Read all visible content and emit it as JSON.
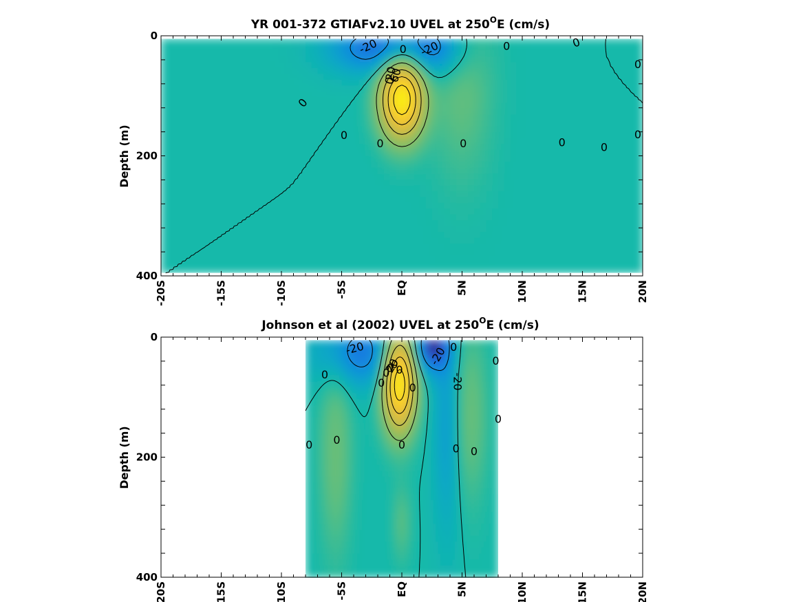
{
  "chart_data": [
    {
      "type": "heatmap",
      "title_main": "YR 001-372 GTIAFv2.10 UVEL at 250",
      "title_sup": "O",
      "title_tail": "E (cm/s)",
      "ylabel": "Depth (m)",
      "xlabel": "",
      "xlim": [
        -20,
        20
      ],
      "ylim": [
        400,
        0
      ],
      "x_ticks": [
        -20,
        -15,
        -10,
        -5,
        0,
        5,
        10,
        15,
        20
      ],
      "x_tick_labels": [
        "-20S",
        "-15S",
        "-10S",
        "-5S",
        "EQ",
        "5N",
        "10N",
        "15N",
        "20N"
      ],
      "y_ticks": [
        0,
        200,
        400
      ],
      "y_tick_labels": [
        "0",
        "200",
        "400"
      ],
      "data_extent": {
        "lat": [
          -20,
          20
        ],
        "depth": [
          5,
          395
        ]
      },
      "features": [
        {
          "kind": "core",
          "lat": 0,
          "depth": 105,
          "lat_sigma": 1.2,
          "depth_sigma": 45,
          "value": 95
        },
        {
          "kind": "westward",
          "lat": -2,
          "depth": 20,
          "lat_sigma": 2.8,
          "depth_sigma": 30,
          "value": -28
        },
        {
          "kind": "westward",
          "lat": 3,
          "depth": 20,
          "lat_sigma": 1.8,
          "depth_sigma": 35,
          "value": -22
        },
        {
          "kind": "eastward",
          "lat": 5,
          "depth": 80,
          "lat_sigma": 1.8,
          "depth_sigma": 110,
          "value": 12
        }
      ],
      "contour_labels": [
        {
          "text": "-20",
          "lat": -2.8,
          "depth": 18,
          "rot": -25
        },
        {
          "text": "0",
          "lat": 0.1,
          "depth": 23,
          "rot": 0
        },
        {
          "text": "-20",
          "lat": 2.3,
          "depth": 22,
          "rot": -25
        },
        {
          "text": "0",
          "lat": 8.7,
          "depth": 18,
          "rot": 0
        },
        {
          "text": "0",
          "lat": 14.5,
          "depth": 12,
          "rot": -20
        },
        {
          "text": "0",
          "lat": 19.6,
          "depth": 48,
          "rot": 0
        },
        {
          "text": "0",
          "lat": -8.2,
          "depth": 112,
          "rot": -50
        },
        {
          "text": "0",
          "lat": -1.0,
          "depth": 75,
          "rot": -75
        },
        {
          "text": "20",
          "lat": -0.9,
          "depth": 63,
          "rot": -80
        },
        {
          "text": "60",
          "lat": -0.5,
          "depth": 66,
          "rot": -75
        },
        {
          "text": "0",
          "lat": -4.8,
          "depth": 166,
          "rot": 0
        },
        {
          "text": "0",
          "lat": -1.8,
          "depth": 180,
          "rot": 0
        },
        {
          "text": "0",
          "lat": 5.1,
          "depth": 180,
          "rot": 0
        },
        {
          "text": "0",
          "lat": 13.3,
          "depth": 178,
          "rot": 0
        },
        {
          "text": "0",
          "lat": 16.8,
          "depth": 186,
          "rot": 0
        },
        {
          "text": "0",
          "lat": 19.6,
          "depth": 165,
          "rot": 0
        }
      ]
    },
    {
      "type": "heatmap",
      "title_main": "Johnson et al (2002) UVEL at 250",
      "title_sup": "O",
      "title_tail": "E (cm/s)",
      "ylabel": "Depth (m)",
      "xlabel": "",
      "xlim": [
        -20,
        20
      ],
      "ylim": [
        400,
        0
      ],
      "x_ticks": [
        -20,
        -15,
        -10,
        -5,
        0,
        5,
        10,
        15,
        20
      ],
      "x_tick_labels": [
        "-20S",
        "-15S",
        "-10S",
        "-5S",
        "EQ",
        "5N",
        "10N",
        "15N",
        "20N"
      ],
      "y_ticks": [
        0,
        200,
        400
      ],
      "y_tick_labels": [
        "0",
        "200",
        "400"
      ],
      "data_extent": {
        "lat": [
          -8,
          8
        ],
        "depth": [
          5,
          400
        ]
      },
      "features": [
        {
          "kind": "core",
          "lat": -0.2,
          "depth": 75,
          "lat_sigma": 0.9,
          "depth_sigma": 55,
          "value": 95
        },
        {
          "kind": "westward",
          "lat": -3.5,
          "depth": 25,
          "lat_sigma": 2.5,
          "depth_sigma": 40,
          "value": -25
        },
        {
          "kind": "westward",
          "lat": 2.5,
          "depth": 15,
          "lat_sigma": 1.0,
          "depth_sigma": 30,
          "value": -35
        },
        {
          "kind": "westward",
          "lat": 3.8,
          "depth": 140,
          "lat_sigma": 0.8,
          "depth_sigma": 130,
          "value": -15
        },
        {
          "kind": "eastward",
          "lat": -5.5,
          "depth": 190,
          "lat_sigma": 0.9,
          "depth_sigma": 120,
          "value": 14
        },
        {
          "kind": "eastward",
          "lat": 5.6,
          "depth": 130,
          "lat_sigma": 1.0,
          "depth_sigma": 100,
          "value": 14
        },
        {
          "kind": "eastward",
          "lat": 0,
          "depth": 310,
          "lat_sigma": 0.5,
          "depth_sigma": 45,
          "value": 10
        }
      ],
      "contour_labels": [
        {
          "text": "-20",
          "lat": -3.9,
          "depth": 19,
          "rot": -15
        },
        {
          "text": "0",
          "lat": 4.3,
          "depth": 17,
          "rot": 0
        },
        {
          "text": "-20",
          "lat": 3.0,
          "depth": 32,
          "rot": -60
        },
        {
          "text": "0",
          "lat": 7.8,
          "depth": 40,
          "rot": 0
        },
        {
          "text": "0",
          "lat": -0.6,
          "depth": 46,
          "rot": 0
        },
        {
          "text": "0",
          "lat": -1.0,
          "depth": 52,
          "rot": 0
        },
        {
          "text": "20",
          "lat": -0.8,
          "depth": 48,
          "rot": -60
        },
        {
          "text": "0",
          "lat": -0.2,
          "depth": 55,
          "rot": 0
        },
        {
          "text": "0",
          "lat": -1.3,
          "depth": 60,
          "rot": 0
        },
        {
          "text": "0",
          "lat": -6.4,
          "depth": 63,
          "rot": 0
        },
        {
          "text": "0",
          "lat": -1.7,
          "depth": 77,
          "rot": 0
        },
        {
          "text": "0",
          "lat": 0.9,
          "depth": 85,
          "rot": 0
        },
        {
          "text": "-20",
          "lat": 4.6,
          "depth": 74,
          "rot": 90
        },
        {
          "text": "0",
          "lat": 8.0,
          "depth": 137,
          "rot": 0
        },
        {
          "text": "0",
          "lat": -7.7,
          "depth": 180,
          "rot": 0
        },
        {
          "text": "0",
          "lat": -5.4,
          "depth": 172,
          "rot": 0
        },
        {
          "text": "0",
          "lat": 0,
          "depth": 180,
          "rot": 0
        },
        {
          "text": "0",
          "lat": 4.5,
          "depth": 186,
          "rot": 0
        },
        {
          "text": "0",
          "lat": 6.0,
          "depth": 191,
          "rot": 0
        }
      ]
    }
  ]
}
